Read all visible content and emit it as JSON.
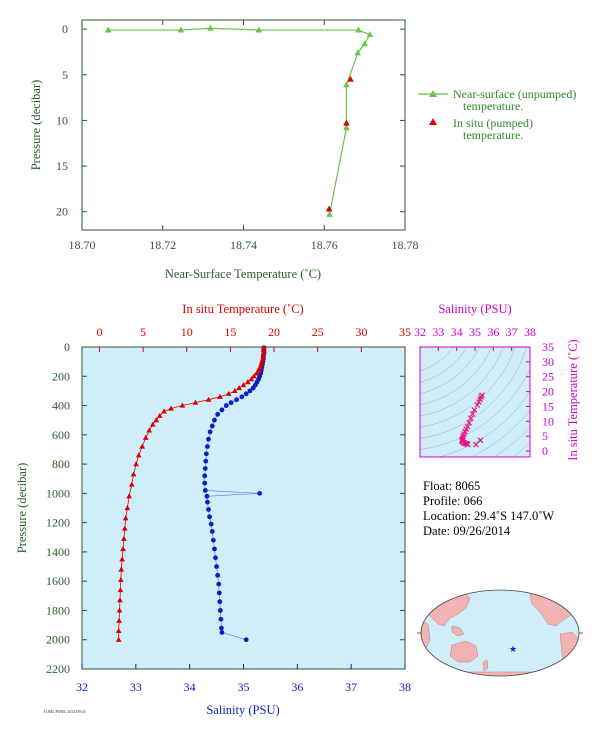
{
  "colors": {
    "axis_green": "#2e5a2e",
    "series_green": "#6cc24a",
    "insitu_red": "#dd0000",
    "salinity_blue": "#0a1fc4",
    "magenta": "#cc00cc",
    "bg_blue": "#cfeefa",
    "land": "#f4b3b3"
  },
  "chart_data": [
    {
      "id": "near-surface",
      "type": "line",
      "xlabel": "Near-Surface Temperature (˚C)",
      "ylabel": "Pressure (decibar)",
      "xlim": [
        18.7,
        18.78
      ],
      "ylim": [
        22,
        -1
      ],
      "x_ticks": [
        "18.70",
        "18.72",
        "18.74",
        "18.76",
        "18.78"
      ],
      "y_ticks": [
        "0",
        "5",
        "10",
        "15",
        "20"
      ],
      "legend": [
        {
          "line1": "Near-surface (unpumped)",
          "line2": "temperature."
        },
        {
          "line1": "In situ (pumped)",
          "line2": "temperature."
        }
      ],
      "series": [
        {
          "points": [
            [
              18.7065,
              0.1
            ],
            [
              18.7245,
              0.1
            ],
            [
              18.7318,
              -0.1
            ],
            [
              18.7438,
              0.1
            ],
            [
              18.7685,
              0.1
            ],
            [
              18.7713,
              0.6
            ],
            [
              18.77,
              1.6
            ],
            [
              18.7683,
              2.6
            ],
            [
              18.7655,
              6.1
            ],
            [
              18.7655,
              10.8
            ],
            [
              18.7613,
              20.3
            ]
          ]
        },
        {
          "points": [
            [
              18.7665,
              5.5
            ],
            [
              18.7655,
              10.3
            ],
            [
              18.7612,
              19.7
            ]
          ]
        }
      ]
    },
    {
      "id": "profile",
      "type": "line",
      "xlabel_top": "In situ Temperature (˚C)",
      "xlabel_bottom": "Salinity (PSU)",
      "ylabel": "Pressure (decibar)",
      "xlim_top": [
        -2,
        35
      ],
      "xlim_bottom": [
        32,
        38
      ],
      "ylim": [
        2200,
        0
      ],
      "top_ticks": [
        "0",
        "5",
        "10",
        "15",
        "20",
        "25",
        "30",
        "35"
      ],
      "bottom_ticks": [
        "32",
        "33",
        "34",
        "35",
        "36",
        "37",
        "38"
      ],
      "y_ticks": [
        "0",
        "200",
        "400",
        "600",
        "800",
        "1000",
        "1200",
        "1400",
        "1600",
        "1800",
        "2000",
        "2200"
      ],
      "temperature": [
        [
          18.8,
          5
        ],
        [
          18.8,
          20
        ],
        [
          18.8,
          40
        ],
        [
          18.75,
          60
        ],
        [
          18.7,
          80
        ],
        [
          18.6,
          100
        ],
        [
          18.5,
          120
        ],
        [
          18.4,
          140
        ],
        [
          18.2,
          160
        ],
        [
          18.0,
          180
        ],
        [
          17.7,
          200
        ],
        [
          17.4,
          220
        ],
        [
          17.0,
          240
        ],
        [
          16.5,
          260
        ],
        [
          16.0,
          280
        ],
        [
          15.5,
          300
        ],
        [
          14.8,
          320
        ],
        [
          13.8,
          340
        ],
        [
          12.5,
          360
        ],
        [
          11.0,
          380
        ],
        [
          9.5,
          400
        ],
        [
          8.2,
          420
        ],
        [
          7.4,
          440
        ],
        [
          6.9,
          470
        ],
        [
          6.5,
          500
        ],
        [
          6.1,
          530
        ],
        [
          5.7,
          570
        ],
        [
          5.3,
          620
        ],
        [
          4.9,
          680
        ],
        [
          4.5,
          740
        ],
        [
          4.2,
          800
        ],
        [
          3.9,
          870
        ],
        [
          3.7,
          940
        ],
        [
          3.4,
          1020
        ],
        [
          3.2,
          1100
        ],
        [
          3.0,
          1170
        ],
        [
          2.9,
          1240
        ],
        [
          2.8,
          1310
        ],
        [
          2.7,
          1380
        ],
        [
          2.6,
          1450
        ],
        [
          2.5,
          1520
        ],
        [
          2.45,
          1590
        ],
        [
          2.4,
          1660
        ],
        [
          2.35,
          1730
        ],
        [
          2.3,
          1800
        ],
        [
          2.25,
          1870
        ],
        [
          2.2,
          1940
        ],
        [
          2.2,
          2000
        ]
      ],
      "salinity": [
        [
          35.38,
          5
        ],
        [
          35.38,
          20
        ],
        [
          35.38,
          40
        ],
        [
          35.37,
          60
        ],
        [
          35.37,
          80
        ],
        [
          35.36,
          100
        ],
        [
          35.35,
          120
        ],
        [
          35.34,
          140
        ],
        [
          35.33,
          160
        ],
        [
          35.32,
          180
        ],
        [
          35.3,
          200
        ],
        [
          35.28,
          220
        ],
        [
          35.25,
          240
        ],
        [
          35.22,
          260
        ],
        [
          35.18,
          280
        ],
        [
          35.12,
          300
        ],
        [
          35.05,
          320
        ],
        [
          34.97,
          340
        ],
        [
          34.87,
          360
        ],
        [
          34.77,
          380
        ],
        [
          34.68,
          400
        ],
        [
          34.6,
          430
        ],
        [
          34.52,
          460
        ],
        [
          34.46,
          500
        ],
        [
          34.42,
          540
        ],
        [
          34.38,
          580
        ],
        [
          34.35,
          630
        ],
        [
          34.33,
          680
        ],
        [
          34.31,
          730
        ],
        [
          34.3,
          780
        ],
        [
          34.29,
          830
        ],
        [
          34.28,
          880
        ],
        [
          34.28,
          930
        ],
        [
          34.29,
          980
        ],
        [
          35.3,
          1000
        ],
        [
          34.32,
          1020
        ],
        [
          34.33,
          1060
        ],
        [
          34.35,
          1110
        ],
        [
          34.37,
          1160
        ],
        [
          34.4,
          1210
        ],
        [
          34.42,
          1260
        ],
        [
          34.44,
          1320
        ],
        [
          34.46,
          1380
        ],
        [
          34.48,
          1440
        ],
        [
          34.5,
          1500
        ],
        [
          34.52,
          1560
        ],
        [
          34.54,
          1620
        ],
        [
          34.55,
          1680
        ],
        [
          34.56,
          1740
        ],
        [
          34.57,
          1800
        ],
        [
          34.58,
          1860
        ],
        [
          34.59,
          1920
        ],
        [
          34.6,
          1950
        ],
        [
          35.05,
          2000
        ]
      ]
    },
    {
      "id": "ts-diagram",
      "type": "scatter",
      "xlabel": "Salinity (PSU)",
      "ylabel": "In situ Temperature (˚C)",
      "xlim": [
        32,
        38
      ],
      "ylim": [
        -2,
        35
      ],
      "x_ticks": [
        "32",
        "33",
        "34",
        "35",
        "36",
        "37",
        "38"
      ],
      "y_ticks": [
        "0",
        "5",
        "10",
        "15",
        "20",
        "25",
        "30",
        "35"
      ],
      "points": [
        [
          35.38,
          18.8
        ],
        [
          35.33,
          18.2
        ],
        [
          35.28,
          17.4
        ],
        [
          35.22,
          16.5
        ],
        [
          35.12,
          15.5
        ],
        [
          34.97,
          13.8
        ],
        [
          34.87,
          12.5
        ],
        [
          34.77,
          11.0
        ],
        [
          34.68,
          9.5
        ],
        [
          34.6,
          8.2
        ],
        [
          34.52,
          7.4
        ],
        [
          34.46,
          6.5
        ],
        [
          34.4,
          5.7
        ],
        [
          34.35,
          5.0
        ],
        [
          34.32,
          4.3
        ],
        [
          34.3,
          3.8
        ],
        [
          34.29,
          3.4
        ],
        [
          34.32,
          3.1
        ],
        [
          34.38,
          2.8
        ],
        [
          34.44,
          2.6
        ],
        [
          34.5,
          2.5
        ],
        [
          34.56,
          2.4
        ],
        [
          34.59,
          2.3
        ],
        [
          34.6,
          2.2
        ],
        [
          35.3,
          3.6
        ],
        [
          35.05,
          2.2
        ]
      ]
    }
  ],
  "float_info": {
    "float": "Float:  8065",
    "profile": "Profile:  066",
    "location": "Location:  29.4˚S  147.0˚W",
    "date": "Date:  09/26/2014"
  },
  "footer_text": "AOML/PMEL 2014/09/26"
}
